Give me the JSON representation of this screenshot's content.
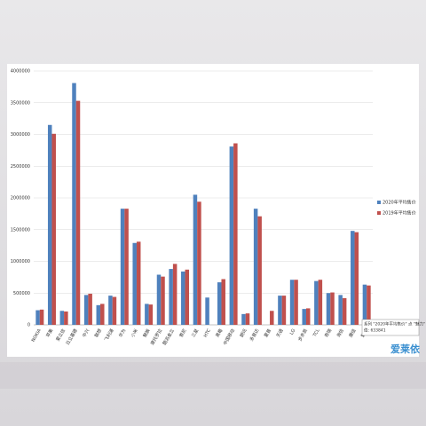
{
  "chart_data": {
    "type": "bar",
    "categories": [
      "NOKIA",
      "苹果",
      "爱立信",
      "日立基德",
      "中兴",
      "联想",
      "飞利浦",
      "华为",
      "小米",
      "魅族",
      "摩托罗拉",
      "酷派金立",
      "索尼",
      "三星",
      "HTC",
      "黑莓",
      "中国移动",
      "朗讯",
      "多普达",
      "夏普",
      "天语",
      "LG",
      "步步高",
      "TCL",
      "奇瑞",
      "海信",
      "康佳",
      "魅力"
    ],
    "series": [
      {
        "name": "2020年平均售价",
        "color": "#4f81bd",
        "values": [
          230000,
          3150000,
          220000,
          3810000,
          470000,
          310000,
          460000,
          1830000,
          1290000,
          330000,
          790000,
          880000,
          840000,
          2050000,
          430000,
          670000,
          2810000,
          170000,
          1830000,
          null,
          460000,
          710000,
          250000,
          690000,
          500000,
          470000,
          1480000,
          633841
        ]
      },
      {
        "name": "2019年平均售价",
        "color": "#c0504d",
        "values": [
          240000,
          3010000,
          210000,
          3530000,
          490000,
          330000,
          440000,
          1830000,
          1310000,
          320000,
          760000,
          960000,
          870000,
          1940000,
          null,
          720000,
          2860000,
          180000,
          1710000,
          220000,
          460000,
          710000,
          260000,
          710000,
          510000,
          420000,
          1460000,
          620000
        ]
      }
    ],
    "ylim": [
      0,
      4000000
    ],
    "yticks": [
      0,
      500000,
      1000000,
      1500000,
      2000000,
      2500000,
      3000000,
      3500000,
      4000000
    ],
    "grid": true,
    "legend": "right",
    "tooltip": [
      "系列 \"2020年平均售价\" 点 \"魅力\"",
      "值: 633841"
    ],
    "watermark": "爱莱依"
  }
}
